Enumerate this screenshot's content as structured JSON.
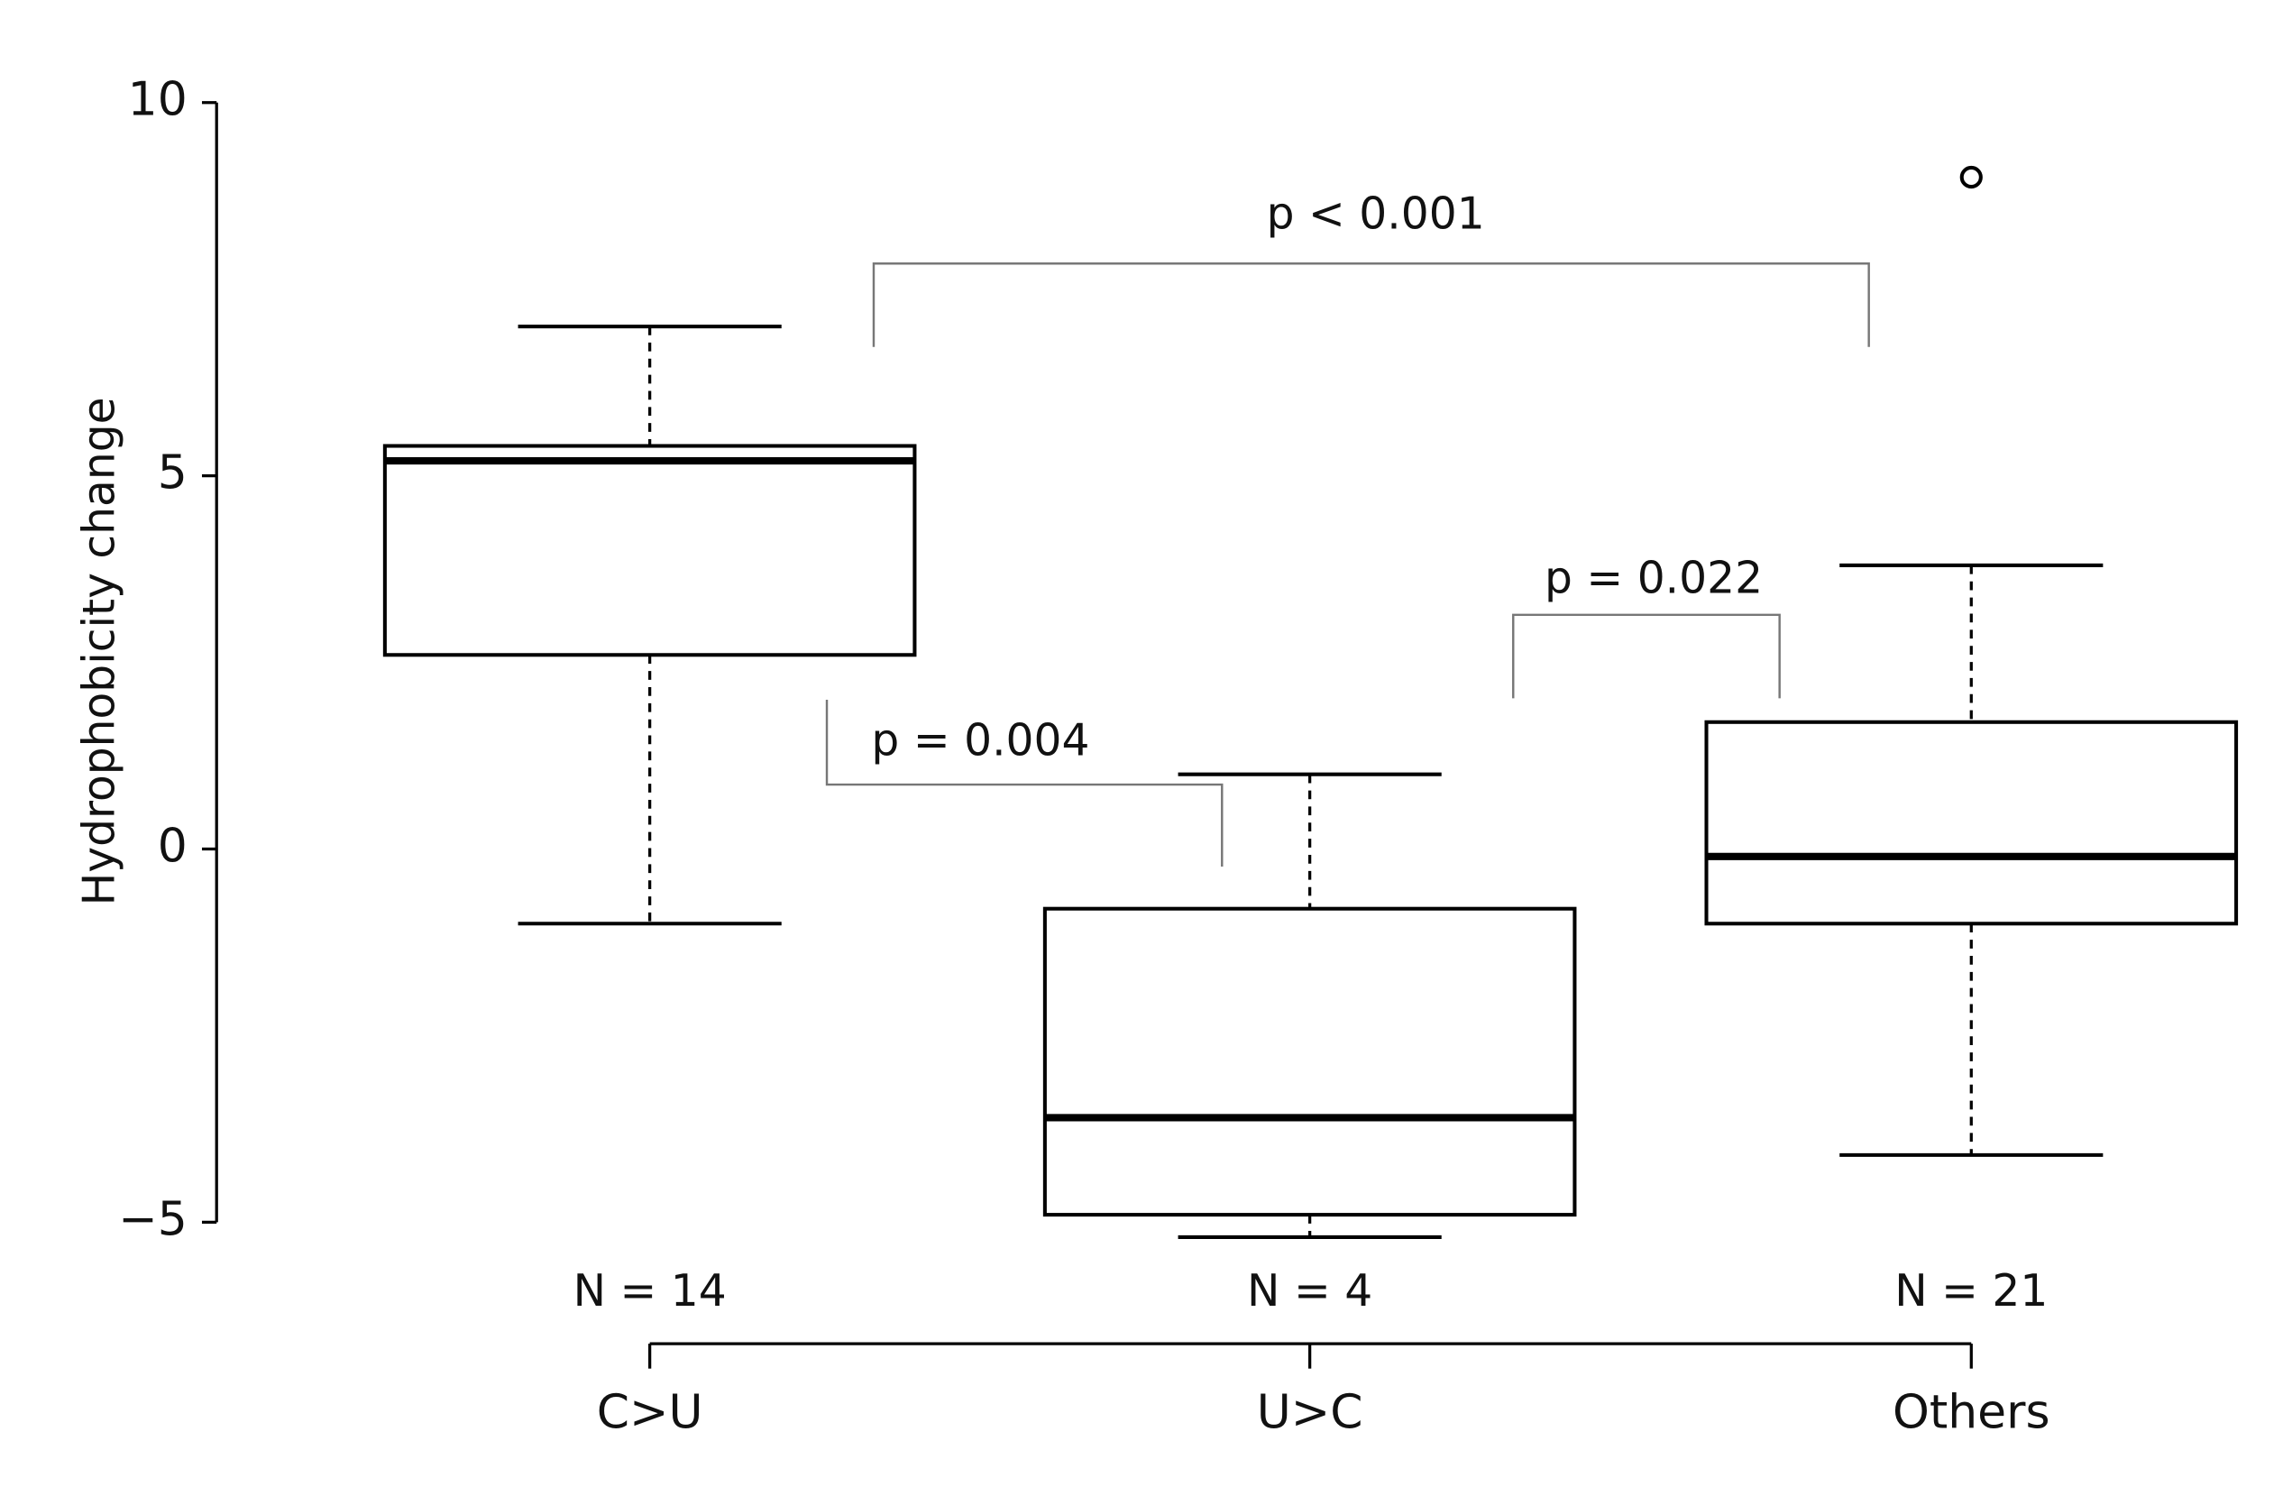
{
  "chart_data": {
    "type": "box",
    "ylabel": "Hydrophobicity change",
    "categories": [
      "C>U",
      "U>C",
      "Others"
    ],
    "n_labels": [
      "N = 14",
      "N = 4",
      "N = 21"
    ],
    "boxes": [
      {
        "whislo": -1.0,
        "q1": 2.6,
        "med": 5.2,
        "q3": 5.4,
        "whishi": 7.0,
        "fliers": []
      },
      {
        "whislo": -5.2,
        "q1": -4.9,
        "med": -3.6,
        "q3": -0.8,
        "whishi": 1.0,
        "fliers": []
      },
      {
        "whislo": -4.1,
        "q1": -1.0,
        "med": -0.1,
        "q3": 1.7,
        "whishi": 3.8,
        "fliers": [
          9.0
        ]
      }
    ],
    "annotations": [
      "p < 0.001",
      "p = 0.004",
      "p = 0.022"
    ],
    "ylim": [
      -5,
      10
    ],
    "yticks": [
      {
        "value": -5,
        "label": "−5"
      },
      0,
      5,
      10
    ],
    "color": "#000000"
  }
}
